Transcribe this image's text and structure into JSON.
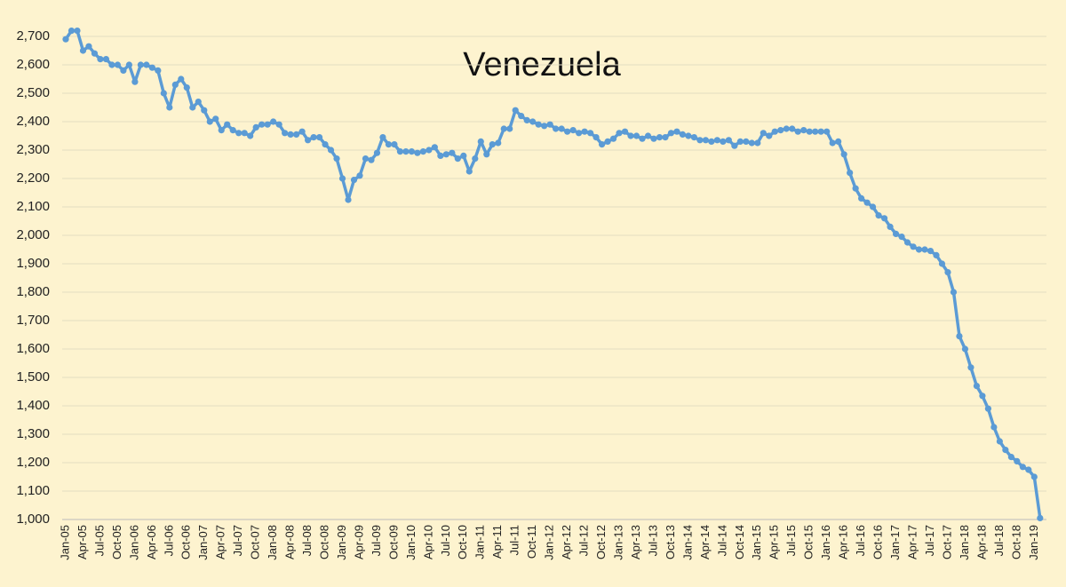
{
  "chart_data": {
    "type": "line",
    "title": "Venezuela",
    "categories": [
      "Jan-05",
      null,
      null,
      "Apr-05",
      null,
      null,
      "Jul-05",
      null,
      null,
      "Oct-05",
      null,
      null,
      "Jan-06",
      null,
      null,
      "Apr-06",
      null,
      null,
      "Jul-06",
      null,
      null,
      "Oct-06",
      null,
      null,
      "Jan-07",
      null,
      null,
      "Apr-07",
      null,
      null,
      "Jul-07",
      null,
      null,
      "Oct-07",
      null,
      null,
      "Jan-08",
      null,
      null,
      "Apr-08",
      null,
      null,
      "Jul-08",
      null,
      null,
      "Oct-08",
      null,
      null,
      "Jan-09",
      null,
      null,
      "Apr-09",
      null,
      null,
      "Jul-09",
      null,
      null,
      "Oct-09",
      null,
      null,
      "Jan-10",
      null,
      null,
      "Apr-10",
      null,
      null,
      "Jul-10",
      null,
      null,
      "Oct-10",
      null,
      null,
      "Jan-11",
      null,
      null,
      "Apr-11",
      null,
      null,
      "Jul-11",
      null,
      null,
      "Oct-11",
      null,
      null,
      "Jan-12",
      null,
      null,
      "Apr-12",
      null,
      null,
      "Jul-12",
      null,
      null,
      "Oct-12",
      null,
      null,
      "Jan-13",
      null,
      null,
      "Apr-13",
      null,
      null,
      "Jul-13",
      null,
      null,
      "Oct-13",
      null,
      null,
      "Jan-14",
      null,
      null,
      "Apr-14",
      null,
      null,
      "Jul-14",
      null,
      null,
      "Oct-14",
      null,
      null,
      "Jan-15",
      null,
      null,
      "Apr-15",
      null,
      null,
      "Jul-15",
      null,
      null,
      "Oct-15",
      null,
      null,
      "Jan-16",
      null,
      null,
      "Apr-16",
      null,
      null,
      "Jul-16",
      null,
      null,
      "Oct-16",
      null,
      null,
      "Jan-17",
      null,
      null,
      "Apr-17",
      null,
      null,
      "Jul-17",
      null,
      null,
      "Oct-17",
      null,
      null,
      "Jan-18",
      null,
      null,
      "Apr-18",
      null,
      null,
      "Jul-18",
      null,
      null,
      "Oct-18",
      null,
      null,
      "Jan-19",
      null
    ],
    "series": [
      {
        "color": "#5b9bd5",
        "values": [
          2690,
          2720,
          2720,
          2650,
          2665,
          2640,
          2620,
          2620,
          2600,
          2600,
          2580,
          2600,
          2540,
          2600,
          2600,
          2590,
          2580,
          2500,
          2450,
          2530,
          2550,
          2520,
          2450,
          2470,
          2440,
          2400,
          2410,
          2370,
          2390,
          2370,
          2360,
          2360,
          2350,
          2380,
          2390,
          2390,
          2400,
          2390,
          2360,
          2355,
          2355,
          2365,
          2335,
          2345,
          2345,
          2320,
          2300,
          2270,
          2200,
          2125,
          2195,
          2210,
          2270,
          2265,
          2290,
          2345,
          2320,
          2320,
          2295,
          2295,
          2295,
          2290,
          2295,
          2300,
          2310,
          2280,
          2285,
          2290,
          2270,
          2280,
          2225,
          2270,
          2330,
          2285,
          2320,
          2325,
          2375,
          2375,
          2440,
          2420,
          2405,
          2400,
          2390,
          2385,
          2390,
          2375,
          2375,
          2365,
          2370,
          2360,
          2365,
          2360,
          2345,
          2320,
          2330,
          2340,
          2360,
          2365,
          2350,
          2350,
          2340,
          2350,
          2340,
          2345,
          2345,
          2360,
          2365,
          2355,
          2350,
          2345,
          2335,
          2335,
          2330,
          2335,
          2330,
          2335,
          2315,
          2330,
          2330,
          2325,
          2325,
          2360,
          2350,
          2365,
          2370,
          2375,
          2375,
          2365,
          2370,
          2365,
          2365,
          2365,
          2365,
          2325,
          2330,
          2285,
          2220,
          2165,
          2130,
          2115,
          2100,
          2070,
          2060,
          2030,
          2005,
          1995,
          1975,
          1960,
          1950,
          1950,
          1945,
          1930,
          1900,
          1870,
          1800,
          1645,
          1600,
          1535,
          1470,
          1435,
          1390,
          1325,
          1275,
          1245,
          1220,
          1205,
          1185,
          1175,
          1150,
          1005
        ]
      }
    ],
    "ylim": [
      1000,
      2700
    ],
    "yticks": [
      {
        "value": 1000,
        "label": "1,000"
      },
      {
        "value": 1100,
        "label": "1,100"
      },
      {
        "value": 1200,
        "label": "1,200"
      },
      {
        "value": 1300,
        "label": "1,300"
      },
      {
        "value": 1400,
        "label": "1,400"
      },
      {
        "value": 1500,
        "label": "1,500"
      },
      {
        "value": 1600,
        "label": "1,600"
      },
      {
        "value": 1700,
        "label": "1,700"
      },
      {
        "value": 1800,
        "label": "1,800"
      },
      {
        "value": 1900,
        "label": "1,900"
      },
      {
        "value": 2000,
        "label": "2,000"
      },
      {
        "value": 2100,
        "label": "2,100"
      },
      {
        "value": 2200,
        "label": "2,200"
      },
      {
        "value": 2300,
        "label": "2,300"
      },
      {
        "value": 2400,
        "label": "2,400"
      },
      {
        "value": 2500,
        "label": "2,500"
      },
      {
        "value": 2600,
        "label": "2,600"
      },
      {
        "value": 2700,
        "label": "2,700"
      }
    ],
    "grid": true
  }
}
